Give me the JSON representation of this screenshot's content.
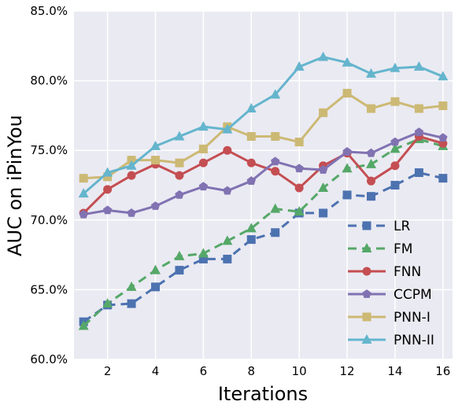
{
  "chart_data": {
    "type": "line",
    "title": "",
    "xlabel": "Iterations",
    "ylabel": "AUC on iPinYou",
    "xlim": [
      0.6,
      16.4
    ],
    "ylim": [
      60.0,
      85.0
    ],
    "xticks": [
      2,
      4,
      6,
      8,
      10,
      12,
      14,
      16
    ],
    "xtick_labels": [
      "2",
      "4",
      "6",
      "8",
      "10",
      "12",
      "14",
      "16"
    ],
    "yticks": [
      60,
      65,
      70,
      75,
      80,
      85
    ],
    "ytick_labels": [
      "60.0%",
      "65.0%",
      "70.0%",
      "75.0%",
      "80.0%",
      "85.0%"
    ],
    "grid": true,
    "legend_position": "bottom-right",
    "x": [
      1,
      2,
      3,
      4,
      5,
      6,
      7,
      8,
      9,
      10,
      11,
      12,
      13,
      14,
      15,
      16
    ],
    "series": [
      {
        "name": "LR",
        "color": "#4c72b0",
        "marker": "square",
        "dashed": true,
        "values": [
          62.7,
          63.9,
          64.0,
          65.2,
          66.4,
          67.2,
          67.2,
          68.6,
          69.1,
          70.5,
          70.5,
          71.8,
          71.7,
          72.5,
          73.4,
          73.0
        ]
      },
      {
        "name": "FM",
        "color": "#55a868",
        "marker": "triangle",
        "dashed": true,
        "values": [
          62.4,
          64.0,
          65.2,
          66.4,
          67.4,
          67.6,
          68.5,
          69.4,
          70.8,
          70.6,
          72.3,
          73.7,
          74.0,
          75.1,
          75.8,
          75.3
        ]
      },
      {
        "name": "FNN",
        "color": "#c44e52",
        "marker": "circle",
        "dashed": false,
        "values": [
          70.5,
          72.2,
          73.2,
          74.0,
          73.2,
          74.1,
          75.0,
          74.1,
          73.5,
          72.3,
          73.9,
          74.8,
          72.8,
          73.9,
          76.0,
          75.5
        ]
      },
      {
        "name": "CCPM",
        "color": "#8172b2",
        "marker": "pentagon",
        "dashed": false,
        "values": [
          70.4,
          70.7,
          70.5,
          71.0,
          71.8,
          72.4,
          72.1,
          72.8,
          74.2,
          73.7,
          73.6,
          74.9,
          74.8,
          75.6,
          76.3,
          75.9
        ]
      },
      {
        "name": "PNN-I",
        "color": "#ccb974",
        "marker": "square",
        "dashed": false,
        "values": [
          73.0,
          73.1,
          74.3,
          74.3,
          74.1,
          75.1,
          76.7,
          76.0,
          76.0,
          75.6,
          77.7,
          79.1,
          78.0,
          78.5,
          78.0,
          78.2
        ]
      },
      {
        "name": "PNN-II",
        "color": "#64b5cd",
        "marker": "triangle",
        "dashed": false,
        "values": [
          71.9,
          73.4,
          73.9,
          75.3,
          76.0,
          76.7,
          76.5,
          78.0,
          79.0,
          81.0,
          81.7,
          81.3,
          80.5,
          80.9,
          81.0,
          80.3
        ]
      }
    ]
  }
}
